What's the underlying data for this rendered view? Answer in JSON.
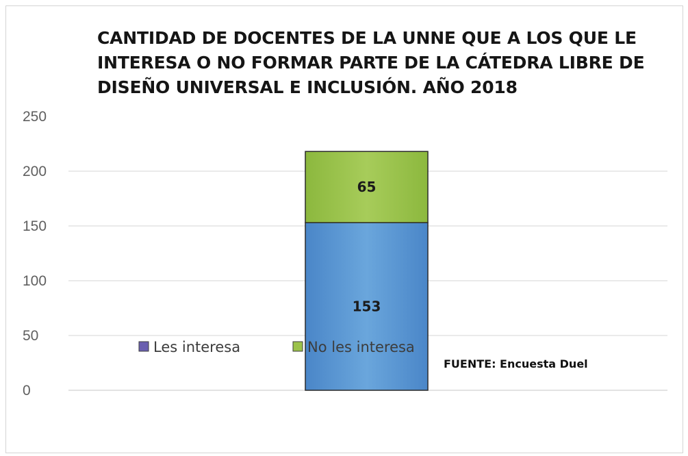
{
  "title_lines": [
    "CANTIDAD DE DOCENTES DE LA UNNE  QUE A LOS QUE LE",
    "INTERESA O NO FORMAR PARTE DE LA CÁTEDRA LIBRE DE",
    "DISEÑO UNIVERSAL E INCLUSIÓN. AÑO 2018"
  ],
  "source": "FUENTE: Encuesta Duel",
  "colors": {
    "les_interesa": "#5b9bd5",
    "les_interesa_dark": "#3e78b8",
    "no_les_interesa": "#9bc24a",
    "no_les_interesa_dark": "#7aa236",
    "legend_les_interesa_swatch": "#6a5fb0",
    "legend_no_les_interesa_swatch": "#9bc24a"
  },
  "chart_data": {
    "type": "bar",
    "stacked": true,
    "title": "CANTIDAD DE DOCENTES DE LA UNNE  QUE A LOS QUE LE INTERESA O NO FORMAR PARTE DE LA CÁTEDRA LIBRE DE DISEÑO UNIVERSAL E INCLUSIÓN. AÑO 2018",
    "categories": [
      ""
    ],
    "series": [
      {
        "name": "Les interesa",
        "values": [
          153
        ]
      },
      {
        "name": "No les interesa",
        "values": [
          65
        ]
      }
    ],
    "data_labels": [
      "153",
      "65"
    ],
    "y_ticks": [
      "0",
      "50",
      "100",
      "150",
      "200",
      "250"
    ],
    "ylim": [
      0,
      250
    ],
    "xlabel": "",
    "ylabel": "",
    "grid": true,
    "legend_placement": "bottom-center"
  }
}
